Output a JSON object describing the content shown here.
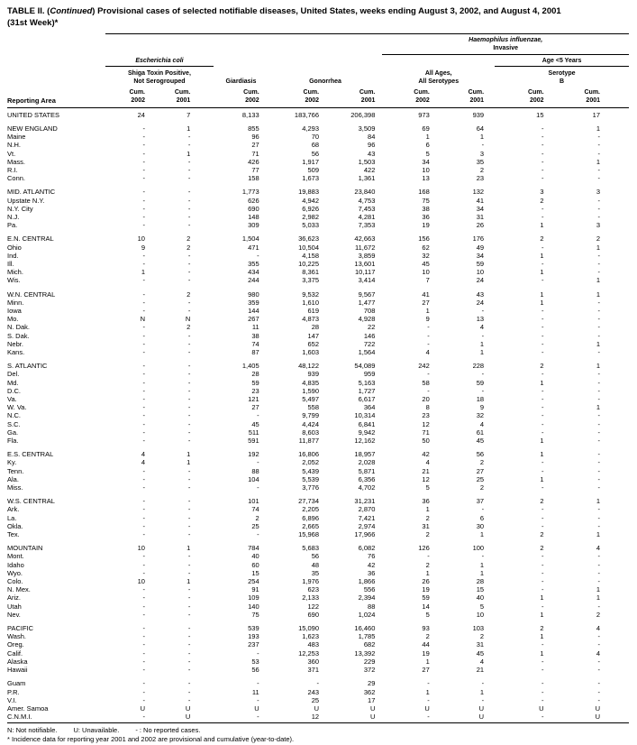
{
  "title": {
    "prefix": "TABLE II. (",
    "continued": "Continued",
    "rest": ") Provisional cases of selected notifiable diseases, United States, weeks ending August 3, 2002, and August 4, 2001",
    "line2": "(31st Week)*"
  },
  "header": {
    "reporting_area": "Reporting Area",
    "ecoli": "Escherichia coli",
    "shiga_line1": "Shiga Toxin Positive,",
    "shiga_line2": "Not Serogrouped",
    "giardiasis": "Giardiasis",
    "gonorrhea": "Gonorrhea",
    "hinf_line1": "Haemophilus influenzae,",
    "hinf_line2": "Invasive",
    "age5": "Age <5 Years",
    "all_ages_line1": "All Ages,",
    "all_ages_line2": "All Serotypes",
    "serotype_line1": "Serotype",
    "serotype_line2": "B",
    "cum_label": "Cum.",
    "col_years": [
      "2002",
      "2001",
      "2002",
      "2002",
      "2001",
      "2002",
      "2001",
      "2002",
      "2001"
    ]
  },
  "sections": [
    {
      "rows": [
        {
          "area": "UNITED STATES",
          "values": [
            "24",
            "7",
            "8,133",
            "183,766",
            "206,398",
            "973",
            "939",
            "15",
            "17"
          ]
        }
      ]
    },
    {
      "rows": [
        {
          "area": "NEW ENGLAND",
          "values": [
            "-",
            "1",
            "855",
            "4,293",
            "3,509",
            "69",
            "64",
            "-",
            "1"
          ]
        },
        {
          "area": "Maine",
          "values": [
            "-",
            "-",
            "96",
            "70",
            "84",
            "1",
            "1",
            "-",
            "-"
          ]
        },
        {
          "area": "N.H.",
          "values": [
            "-",
            "-",
            "27",
            "68",
            "96",
            "6",
            "-",
            "-",
            "-"
          ]
        },
        {
          "area": "Vt.",
          "values": [
            "-",
            "1",
            "71",
            "56",
            "43",
            "5",
            "3",
            "-",
            "-"
          ]
        },
        {
          "area": "Mass.",
          "values": [
            "-",
            "-",
            "426",
            "1,917",
            "1,503",
            "34",
            "35",
            "-",
            "1"
          ]
        },
        {
          "area": "R.I.",
          "values": [
            "-",
            "-",
            "77",
            "509",
            "422",
            "10",
            "2",
            "-",
            "-"
          ]
        },
        {
          "area": "Conn.",
          "values": [
            "-",
            "-",
            "158",
            "1,673",
            "1,361",
            "13",
            "23",
            "-",
            "-"
          ]
        }
      ]
    },
    {
      "rows": [
        {
          "area": "MID. ATLANTIC",
          "values": [
            "-",
            "-",
            "1,773",
            "19,883",
            "23,840",
            "168",
            "132",
            "3",
            "3"
          ]
        },
        {
          "area": "Upstate N.Y.",
          "values": [
            "-",
            "-",
            "626",
            "4,942",
            "4,753",
            "75",
            "41",
            "2",
            "-"
          ]
        },
        {
          "area": "N.Y. City",
          "values": [
            "-",
            "-",
            "690",
            "6,926",
            "7,453",
            "38",
            "34",
            "-",
            "-"
          ]
        },
        {
          "area": "N.J.",
          "values": [
            "-",
            "-",
            "148",
            "2,982",
            "4,281",
            "36",
            "31",
            "-",
            "-"
          ]
        },
        {
          "area": "Pa.",
          "values": [
            "-",
            "-",
            "309",
            "5,033",
            "7,353",
            "19",
            "26",
            "1",
            "3"
          ]
        }
      ]
    },
    {
      "rows": [
        {
          "area": "E.N. CENTRAL",
          "values": [
            "10",
            "2",
            "1,504",
            "36,623",
            "42,663",
            "156",
            "176",
            "2",
            "2"
          ]
        },
        {
          "area": "Ohio",
          "values": [
            "9",
            "2",
            "471",
            "10,504",
            "11,672",
            "62",
            "49",
            "-",
            "1"
          ]
        },
        {
          "area": "Ind.",
          "values": [
            "-",
            "-",
            "-",
            "4,158",
            "3,859",
            "32",
            "34",
            "1",
            "-"
          ]
        },
        {
          "area": "Ill.",
          "values": [
            "-",
            "-",
            "355",
            "10,225",
            "13,601",
            "45",
            "59",
            "-",
            "-"
          ]
        },
        {
          "area": "Mich.",
          "values": [
            "1",
            "-",
            "434",
            "8,361",
            "10,117",
            "10",
            "10",
            "1",
            "-"
          ]
        },
        {
          "area": "Wis.",
          "values": [
            "-",
            "-",
            "244",
            "3,375",
            "3,414",
            "7",
            "24",
            "-",
            "1"
          ]
        }
      ]
    },
    {
      "rows": [
        {
          "area": "W.N. CENTRAL",
          "values": [
            "-",
            "2",
            "980",
            "9,532",
            "9,567",
            "41",
            "43",
            "1",
            "1"
          ]
        },
        {
          "area": "Minn.",
          "values": [
            "-",
            "-",
            "359",
            "1,610",
            "1,477",
            "27",
            "24",
            "1",
            "-"
          ]
        },
        {
          "area": "Iowa",
          "values": [
            "-",
            "-",
            "144",
            "619",
            "708",
            "1",
            "-",
            "-",
            "-"
          ]
        },
        {
          "area": "Mo.",
          "values": [
            "N",
            "N",
            "267",
            "4,873",
            "4,928",
            "9",
            "13",
            "-",
            "-"
          ]
        },
        {
          "area": "N. Dak.",
          "values": [
            "-",
            "2",
            "11",
            "28",
            "22",
            "-",
            "4",
            "-",
            "-"
          ]
        },
        {
          "area": "S. Dak.",
          "values": [
            "-",
            "-",
            "38",
            "147",
            "146",
            "-",
            "-",
            "-",
            "-"
          ]
        },
        {
          "area": "Nebr.",
          "values": [
            "-",
            "-",
            "74",
            "652",
            "722",
            "-",
            "1",
            "-",
            "1"
          ]
        },
        {
          "area": "Kans.",
          "values": [
            "-",
            "-",
            "87",
            "1,603",
            "1,564",
            "4",
            "1",
            "-",
            "-"
          ]
        }
      ]
    },
    {
      "rows": [
        {
          "area": "S. ATLANTIC",
          "values": [
            "-",
            "-",
            "1,405",
            "48,122",
            "54,089",
            "242",
            "228",
            "2",
            "1"
          ]
        },
        {
          "area": "Del.",
          "values": [
            "-",
            "-",
            "28",
            "939",
            "959",
            "-",
            "-",
            "-",
            "-"
          ]
        },
        {
          "area": "Md.",
          "values": [
            "-",
            "-",
            "59",
            "4,835",
            "5,163",
            "58",
            "59",
            "1",
            "-"
          ]
        },
        {
          "area": "D.C.",
          "values": [
            "-",
            "-",
            "23",
            "1,590",
            "1,727",
            "-",
            "-",
            "-",
            "-"
          ]
        },
        {
          "area": "Va.",
          "values": [
            "-",
            "-",
            "121",
            "5,497",
            "6,617",
            "20",
            "18",
            "-",
            "-"
          ]
        },
        {
          "area": "W. Va.",
          "values": [
            "-",
            "-",
            "27",
            "558",
            "364",
            "8",
            "9",
            "-",
            "1"
          ]
        },
        {
          "area": "N.C.",
          "values": [
            "-",
            "-",
            "-",
            "9,799",
            "10,314",
            "23",
            "32",
            "-",
            "-"
          ]
        },
        {
          "area": "S.C.",
          "values": [
            "-",
            "-",
            "45",
            "4,424",
            "6,841",
            "12",
            "4",
            "-",
            "-"
          ]
        },
        {
          "area": "Ga.",
          "values": [
            "-",
            "-",
            "511",
            "8,603",
            "9,942",
            "71",
            "61",
            "-",
            "-"
          ]
        },
        {
          "area": "Fla.",
          "values": [
            "-",
            "-",
            "591",
            "11,877",
            "12,162",
            "50",
            "45",
            "1",
            "-"
          ]
        }
      ]
    },
    {
      "rows": [
        {
          "area": "E.S. CENTRAL",
          "values": [
            "4",
            "1",
            "192",
            "16,806",
            "18,957",
            "42",
            "56",
            "1",
            "-"
          ]
        },
        {
          "area": "Ky.",
          "values": [
            "4",
            "1",
            "-",
            "2,052",
            "2,028",
            "4",
            "2",
            "-",
            "-"
          ]
        },
        {
          "area": "Tenn.",
          "values": [
            "-",
            "-",
            "88",
            "5,439",
            "5,871",
            "21",
            "27",
            "-",
            "-"
          ]
        },
        {
          "area": "Ala.",
          "values": [
            "-",
            "-",
            "104",
            "5,539",
            "6,356",
            "12",
            "25",
            "1",
            "-"
          ]
        },
        {
          "area": "Miss.",
          "values": [
            "-",
            "-",
            "-",
            "3,776",
            "4,702",
            "5",
            "2",
            "-",
            "-"
          ]
        }
      ]
    },
    {
      "rows": [
        {
          "area": "W.S. CENTRAL",
          "values": [
            "-",
            "-",
            "101",
            "27,734",
            "31,231",
            "36",
            "37",
            "2",
            "1"
          ]
        },
        {
          "area": "Ark.",
          "values": [
            "-",
            "-",
            "74",
            "2,205",
            "2,870",
            "1",
            "-",
            "-",
            "-"
          ]
        },
        {
          "area": "La.",
          "values": [
            "-",
            "-",
            "2",
            "6,896",
            "7,421",
            "2",
            "6",
            "-",
            "-"
          ]
        },
        {
          "area": "Okla.",
          "values": [
            "-",
            "-",
            "25",
            "2,665",
            "2,974",
            "31",
            "30",
            "-",
            "-"
          ]
        },
        {
          "area": "Tex.",
          "values": [
            "-",
            "-",
            "-",
            "15,968",
            "17,966",
            "2",
            "1",
            "2",
            "1"
          ]
        }
      ]
    },
    {
      "rows": [
        {
          "area": "MOUNTAIN",
          "values": [
            "10",
            "1",
            "784",
            "5,683",
            "6,082",
            "126",
            "100",
            "2",
            "4"
          ]
        },
        {
          "area": "Mont.",
          "values": [
            "-",
            "-",
            "40",
            "56",
            "76",
            "-",
            "-",
            "-",
            "-"
          ]
        },
        {
          "area": "Idaho",
          "values": [
            "-",
            "-",
            "60",
            "48",
            "42",
            "2",
            "1",
            "-",
            "-"
          ]
        },
        {
          "area": "Wyo.",
          "values": [
            "-",
            "-",
            "15",
            "35",
            "36",
            "1",
            "1",
            "-",
            "-"
          ]
        },
        {
          "area": "Colo.",
          "values": [
            "10",
            "1",
            "254",
            "1,976",
            "1,866",
            "26",
            "28",
            "-",
            "-"
          ]
        },
        {
          "area": "N. Mex.",
          "values": [
            "-",
            "-",
            "91",
            "623",
            "556",
            "19",
            "15",
            "-",
            "1"
          ]
        },
        {
          "area": "Ariz.",
          "values": [
            "-",
            "-",
            "109",
            "2,133",
            "2,394",
            "59",
            "40",
            "1",
            "1"
          ]
        },
        {
          "area": "Utah",
          "values": [
            "-",
            "-",
            "140",
            "122",
            "88",
            "14",
            "5",
            "-",
            "-"
          ]
        },
        {
          "area": "Nev.",
          "values": [
            "-",
            "-",
            "75",
            "690",
            "1,024",
            "5",
            "10",
            "1",
            "2"
          ]
        }
      ]
    },
    {
      "rows": [
        {
          "area": "PACIFIC",
          "values": [
            "-",
            "-",
            "539",
            "15,090",
            "16,460",
            "93",
            "103",
            "2",
            "4"
          ]
        },
        {
          "area": "Wash.",
          "values": [
            "-",
            "-",
            "193",
            "1,623",
            "1,785",
            "2",
            "2",
            "1",
            "-"
          ]
        },
        {
          "area": "Oreg.",
          "values": [
            "-",
            "-",
            "237",
            "483",
            "682",
            "44",
            "31",
            "-",
            "-"
          ]
        },
        {
          "area": "Calif.",
          "values": [
            "-",
            "-",
            "-",
            "12,253",
            "13,392",
            "19",
            "45",
            "1",
            "4"
          ]
        },
        {
          "area": "Alaska",
          "values": [
            "-",
            "-",
            "53",
            "360",
            "229",
            "1",
            "4",
            "-",
            "-"
          ]
        },
        {
          "area": "Hawaii",
          "values": [
            "-",
            "-",
            "56",
            "371",
            "372",
            "27",
            "21",
            "-",
            "-"
          ]
        }
      ]
    },
    {
      "rows": [
        {
          "area": "Guam",
          "values": [
            "-",
            "-",
            "-",
            "-",
            "29",
            "-",
            "-",
            "-",
            "-"
          ]
        },
        {
          "area": "P.R.",
          "values": [
            "-",
            "-",
            "11",
            "243",
            "362",
            "1",
            "1",
            "-",
            "-"
          ]
        },
        {
          "area": "V.I.",
          "values": [
            "-",
            "-",
            "-",
            "25",
            "17",
            "-",
            "-",
            "-",
            "-"
          ]
        },
        {
          "area": "Amer. Samoa",
          "values": [
            "U",
            "U",
            "U",
            "U",
            "U",
            "U",
            "U",
            "U",
            "U"
          ]
        },
        {
          "area": "C.N.M.I.",
          "values": [
            "-",
            "U",
            "-",
            "12",
            "U",
            "-",
            "U",
            "-",
            "U"
          ]
        }
      ]
    }
  ],
  "footnotes": {
    "n": "N: Not notifiable.",
    "u": "U: Unavailable.",
    "dash": "- : No reported cases.",
    "line2": "* Incidence data for reporting year 2001 and 2002 are provisional and cumulative (year-to-date)."
  }
}
